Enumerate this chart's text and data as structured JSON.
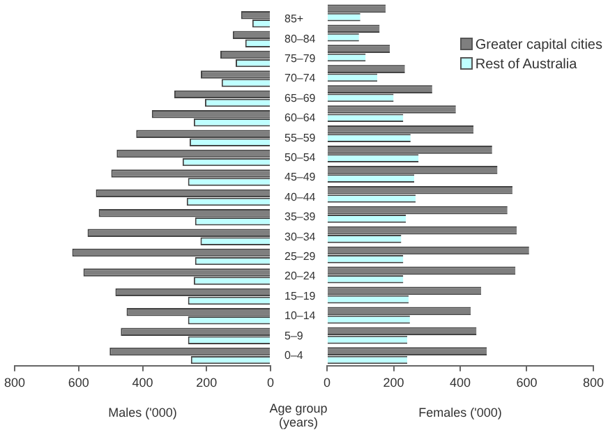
{
  "chart_data": [
    {
      "type": "bar",
      "orientation": "horizontal",
      "xlabel": "Males ('000)",
      "ylabel": "Age group (years)",
      "categories": [
        "85+",
        "80–84",
        "75–79",
        "70–74",
        "65–69",
        "60–64",
        "55–59",
        "50–54",
        "45–49",
        "40–44",
        "35–39",
        "30–34",
        "25–29",
        "20–24",
        "15–19",
        "10–14",
        "5–9",
        "0–4"
      ],
      "series": [
        {
          "color": "#7f7f7f",
          "values": [
            92,
            118,
            157,
            218,
            301,
            371,
            420,
            481,
            498,
            546,
            537,
            572,
            620,
            585,
            485,
            450,
            468,
            503
          ]
        },
        {
          "color": "#bfffff",
          "values": [
            57,
            79,
            109,
            153,
            205,
            240,
            253,
            275,
            258,
            262,
            236,
            219,
            236,
            240,
            258,
            258,
            258,
            249
          ]
        }
      ],
      "xlim": [
        800,
        0
      ],
      "xticks": [
        800,
        600,
        400,
        200,
        0
      ],
      "grid": false,
      "legend": false
    },
    {
      "type": "bar",
      "orientation": "horizontal",
      "xlabel": "Females ('000)",
      "categories": [
        null,
        null,
        null,
        null,
        null,
        null,
        null,
        null,
        null,
        null,
        null,
        null,
        null,
        null,
        null,
        null,
        null,
        null
      ],
      "series": [
        {
          "name": "Greater capital cities",
          "color": "#7f7f7f",
          "values": [
            176,
            158,
            189,
            234,
            316,
            387,
            440,
            496,
            512,
            557,
            542,
            570,
            607,
            566,
            463,
            432,
            449,
            480
          ]
        },
        {
          "name": "Rest of Australia",
          "color": "#bfffff",
          "values": [
            100,
            96,
            116,
            151,
            200,
            229,
            251,
            275,
            262,
            266,
            237,
            223,
            229,
            229,
            245,
            249,
            241,
            241
          ]
        }
      ],
      "xlim": [
        0,
        800
      ],
      "xticks": [
        0,
        200,
        400,
        600,
        800
      ],
      "grid": false,
      "legend": "top right",
      "tick_labels": "x"
    }
  ]
}
